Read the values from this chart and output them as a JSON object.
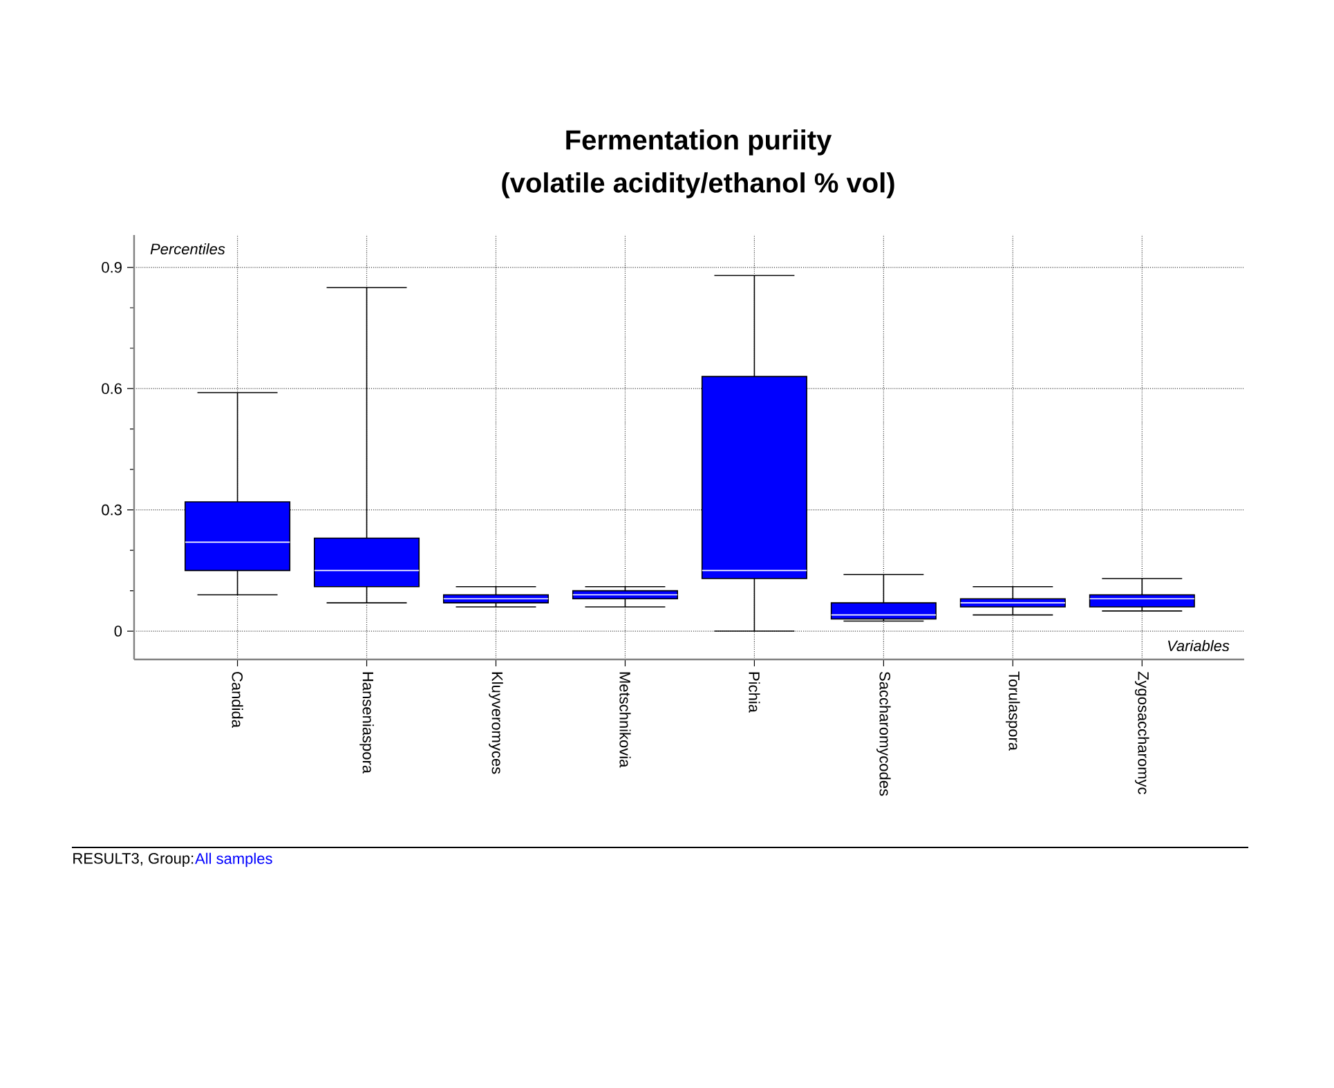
{
  "chart_data": {
    "type": "box",
    "title": "Fermentation puriity",
    "subtitle": "(volatile acidity/ethanol % vol)",
    "xlabel": "Variables",
    "ylabel": "Percentiles",
    "annotations": [
      "RESULT3, Group:",
      "All samples"
    ],
    "categories": [
      "Candida",
      "Hanseniaspora",
      "Kluyveromyces",
      "Metschnikovia",
      "Pichia",
      "Saccharomycodes",
      "Torulaspora",
      "Zygosaccharomyc"
    ],
    "boxes": [
      {
        "low": 0.09,
        "q1": 0.15,
        "median": 0.22,
        "q3": 0.32,
        "high": 0.59
      },
      {
        "low": 0.07,
        "q1": 0.11,
        "median": 0.15,
        "q3": 0.23,
        "high": 0.85
      },
      {
        "low": 0.06,
        "q1": 0.07,
        "median": 0.08,
        "q3": 0.09,
        "high": 0.11
      },
      {
        "low": 0.06,
        "q1": 0.08,
        "median": 0.09,
        "q3": 0.1,
        "high": 0.11
      },
      {
        "low": 0,
        "q1": 0.13,
        "median": 0.15,
        "q3": 0.63,
        "high": 0.88
      },
      {
        "low": 0.025,
        "q1": 0.03,
        "median": 0.04,
        "q3": 0.07,
        "high": 0.14
      },
      {
        "low": 0.04,
        "q1": 0.06,
        "median": 0.07,
        "q3": 0.08,
        "high": 0.11
      },
      {
        "low": 0.05,
        "q1": 0.06,
        "median": 0.08,
        "q3": 0.09,
        "high": 0.13
      }
    ],
    "color": "#0000ff",
    "ylim": [
      -0.07,
      0.98
    ],
    "yticks": [
      0,
      0.3,
      0.6,
      0.9
    ],
    "grid": true
  }
}
